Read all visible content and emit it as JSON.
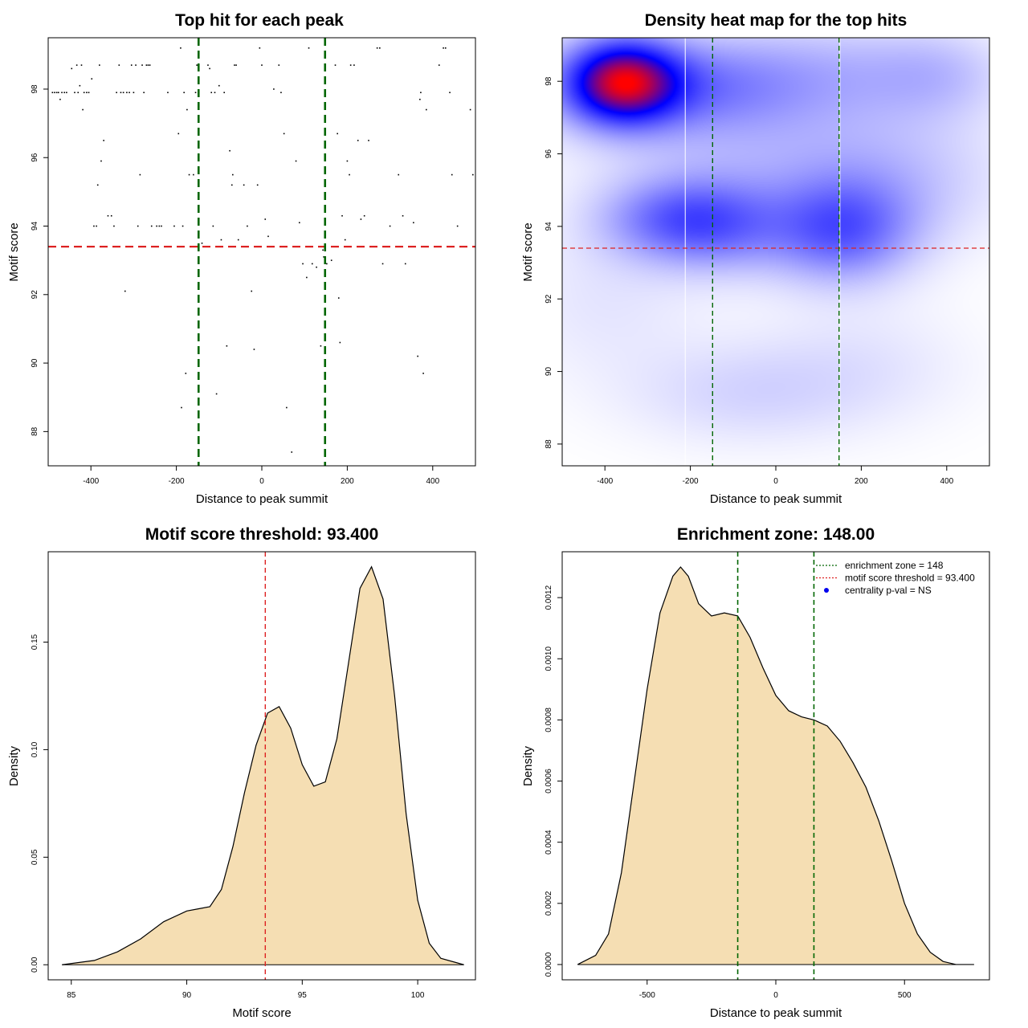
{
  "chart_data": [
    {
      "id": "scatter",
      "type": "scatter",
      "title": "Top hit for each peak",
      "xlabel": "Distance to peak summit",
      "ylabel": "Motif score",
      "xlim": [
        -500,
        500
      ],
      "ylim": [
        87.0,
        99.5
      ],
      "xticks": [
        -400,
        -200,
        0,
        200,
        400
      ],
      "yticks": [
        88,
        90,
        92,
        94,
        96,
        98
      ],
      "threshold_y": 93.4,
      "zone_x": [
        -148,
        148
      ],
      "threshold_color": "#dd2222",
      "zone_color": "#006600",
      "points": [
        [
          -490,
          97.9
        ],
        [
          -485,
          97.9
        ],
        [
          -480,
          97.9
        ],
        [
          -476,
          97.9
        ],
        [
          -472,
          97.7
        ],
        [
          -468,
          97.9
        ],
        [
          -462,
          97.9
        ],
        [
          -457,
          97.9
        ],
        [
          -445,
          98.6
        ],
        [
          -438,
          97.9
        ],
        [
          -433,
          98.7
        ],
        [
          -430,
          97.9
        ],
        [
          -426,
          98.1
        ],
        [
          -422,
          98.7
        ],
        [
          -419,
          97.4
        ],
        [
          -416,
          97.9
        ],
        [
          -410,
          97.9
        ],
        [
          -405,
          97.9
        ],
        [
          -398,
          98.3
        ],
        [
          -393,
          94.0
        ],
        [
          -387,
          94.0
        ],
        [
          -384,
          95.2
        ],
        [
          -380,
          98.7
        ],
        [
          -376,
          95.9
        ],
        [
          -370,
          96.5
        ],
        [
          -360,
          94.3
        ],
        [
          -352,
          94.3
        ],
        [
          -346,
          94.0
        ],
        [
          -340,
          97.9
        ],
        [
          -334,
          98.7
        ],
        [
          -330,
          97.9
        ],
        [
          -324,
          97.9
        ],
        [
          -320,
          92.1
        ],
        [
          -316,
          97.9
        ],
        [
          -310,
          97.9
        ],
        [
          -305,
          98.7
        ],
        [
          -300,
          97.9
        ],
        [
          -295,
          98.7
        ],
        [
          -290,
          94.0
        ],
        [
          -285,
          95.5
        ],
        [
          -280,
          98.7
        ],
        [
          -276,
          97.9
        ],
        [
          -270,
          98.7
        ],
        [
          -266,
          98.7
        ],
        [
          -262,
          98.7
        ],
        [
          -258,
          94.0
        ],
        [
          -246,
          94.0
        ],
        [
          -240,
          94.0
        ],
        [
          -235,
          94.0
        ],
        [
          -220,
          97.9
        ],
        [
          -205,
          94.0
        ],
        [
          -195,
          96.7
        ],
        [
          -190,
          99.2
        ],
        [
          -188,
          88.7
        ],
        [
          -185,
          94.0
        ],
        [
          -182,
          97.9
        ],
        [
          -178,
          89.7
        ],
        [
          -175,
          97.4
        ],
        [
          -170,
          95.5
        ],
        [
          -160,
          95.5
        ],
        [
          -155,
          97.9
        ],
        [
          -152,
          98.7
        ],
        [
          -148,
          98.7
        ],
        [
          -140,
          93.5
        ],
        [
          -126,
          98.7
        ],
        [
          -122,
          98.6
        ],
        [
          -118,
          97.9
        ],
        [
          -114,
          94.0
        ],
        [
          -110,
          97.9
        ],
        [
          -106,
          89.1
        ],
        [
          -100,
          98.1
        ],
        [
          -95,
          93.6
        ],
        [
          -88,
          97.9
        ],
        [
          -82,
          90.5
        ],
        [
          -75,
          96.2
        ],
        [
          -70,
          95.2
        ],
        [
          -68,
          95.5
        ],
        [
          -64,
          98.7
        ],
        [
          -60,
          98.7
        ],
        [
          -55,
          93.6
        ],
        [
          -42,
          95.2
        ],
        [
          -34,
          94.0
        ],
        [
          -24,
          92.1
        ],
        [
          -18,
          90.4
        ],
        [
          -10,
          95.2
        ],
        [
          -5,
          99.2
        ],
        [
          0,
          98.7
        ],
        [
          8,
          94.2
        ],
        [
          15,
          93.7
        ],
        [
          28,
          98.0
        ],
        [
          40,
          98.7
        ],
        [
          45,
          97.9
        ],
        [
          52,
          96.7
        ],
        [
          58,
          88.7
        ],
        [
          70,
          87.4
        ],
        [
          80,
          95.9
        ],
        [
          88,
          94.1
        ],
        [
          96,
          92.9
        ],
        [
          105,
          92.5
        ],
        [
          110,
          99.2
        ],
        [
          118,
          92.9
        ],
        [
          128,
          92.8
        ],
        [
          138,
          90.5
        ],
        [
          143,
          93.3
        ],
        [
          145,
          93.1
        ],
        [
          152,
          92.9
        ],
        [
          163,
          93.0
        ],
        [
          172,
          98.7
        ],
        [
          177,
          96.7
        ],
        [
          180,
          91.9
        ],
        [
          183,
          90.6
        ],
        [
          188,
          94.3
        ],
        [
          195,
          93.6
        ],
        [
          200,
          95.9
        ],
        [
          205,
          95.5
        ],
        [
          208,
          98.7
        ],
        [
          216,
          98.7
        ],
        [
          225,
          96.5
        ],
        [
          232,
          94.2
        ],
        [
          240,
          94.3
        ],
        [
          250,
          96.5
        ],
        [
          270,
          99.2
        ],
        [
          276,
          99.2
        ],
        [
          283,
          92.9
        ],
        [
          300,
          94.0
        ],
        [
          320,
          95.5
        ],
        [
          330,
          94.3
        ],
        [
          336,
          92.9
        ],
        [
          355,
          94.1
        ],
        [
          365,
          90.2
        ],
        [
          370,
          97.7
        ],
        [
          372,
          97.9
        ],
        [
          378,
          89.7
        ],
        [
          385,
          97.4
        ],
        [
          415,
          98.7
        ],
        [
          425,
          99.2
        ],
        [
          430,
          99.2
        ],
        [
          440,
          97.9
        ],
        [
          445,
          95.5
        ],
        [
          458,
          94.0
        ],
        [
          488,
          97.4
        ],
        [
          494,
          95.5
        ]
      ]
    },
    {
      "id": "heatmap",
      "type": "heatmap",
      "title": "Density heat map for the top hits",
      "xlabel": "Distance to peak summit",
      "ylabel": "Motif score",
      "xlim": [
        -500,
        500
      ],
      "ylim": [
        87.4,
        99.2
      ],
      "xticks": [
        -400,
        -200,
        0,
        200,
        400
      ],
      "yticks": [
        88,
        90,
        92,
        94,
        96,
        98
      ],
      "threshold_y": 93.4,
      "zone_x": [
        -148,
        148
      ],
      "colors": [
        "#ffffff",
        "#0000ff",
        "#ff0000"
      ],
      "density_blobs": [
        {
          "x": -360,
          "y": 98.0,
          "sx": 90,
          "sy": 0.8,
          "w": 1.15
        },
        {
          "x": -270,
          "y": 97.9,
          "sx": 200,
          "sy": 0.9,
          "w": 0.45
        },
        {
          "x": -250,
          "y": 94.2,
          "sx": 120,
          "sy": 0.8,
          "w": 0.45
        },
        {
          "x": -120,
          "y": 94.0,
          "sx": 110,
          "sy": 0.9,
          "w": 0.35
        },
        {
          "x": 150,
          "y": 93.9,
          "sx": 120,
          "sy": 1.0,
          "w": 0.6
        },
        {
          "x": 100,
          "y": 98.3,
          "sx": 200,
          "sy": 1.0,
          "w": 0.22
        },
        {
          "x": 380,
          "y": 98.2,
          "sx": 120,
          "sy": 0.9,
          "w": 0.2
        },
        {
          "x": -50,
          "y": 96.2,
          "sx": 250,
          "sy": 1.4,
          "w": 0.2
        },
        {
          "x": 300,
          "y": 95.3,
          "sx": 180,
          "sy": 1.3,
          "w": 0.18
        },
        {
          "x": -80,
          "y": 89.4,
          "sx": 190,
          "sy": 1.0,
          "w": 0.15
        },
        {
          "x": 200,
          "y": 90.2,
          "sx": 180,
          "sy": 1.2,
          "w": 0.1
        },
        {
          "x": -400,
          "y": 92.0,
          "sx": 160,
          "sy": 1.5,
          "w": 0.1
        }
      ]
    },
    {
      "id": "score_density",
      "type": "area",
      "title": "Motif score threshold: 93.400",
      "xlabel": "Motif score",
      "ylabel": "Density",
      "xlim": [
        84,
        102.5
      ],
      "ylim": [
        -0.007,
        0.192
      ],
      "xticks": [
        85,
        90,
        95,
        100
      ],
      "yticks": [
        0.0,
        0.05,
        0.1,
        0.15
      ],
      "ytick_labels": [
        "0.00",
        "0.05",
        "0.10",
        "0.15"
      ],
      "threshold_x": 93.4,
      "fill_color": "#f5deb3",
      "x": [
        84.6,
        86,
        87,
        88,
        89,
        90,
        90.5,
        91,
        91.5,
        92,
        92.5,
        93,
        93.5,
        94,
        94.5,
        95,
        95.5,
        96,
        96.5,
        97,
        97.5,
        98,
        98.5,
        99,
        99.5,
        100,
        100.5,
        101,
        102
      ],
      "y": [
        0.0,
        0.002,
        0.006,
        0.012,
        0.02,
        0.025,
        0.026,
        0.027,
        0.035,
        0.055,
        0.08,
        0.102,
        0.117,
        0.12,
        0.11,
        0.093,
        0.083,
        0.085,
        0.105,
        0.14,
        0.175,
        0.185,
        0.17,
        0.125,
        0.07,
        0.03,
        0.01,
        0.003,
        0.0
      ]
    },
    {
      "id": "distance_density",
      "type": "area",
      "title": "Enrichment zone: 148.00",
      "xlabel": "Distance to peak summit",
      "ylabel": "Density",
      "xlim": [
        -830,
        830
      ],
      "ylim": [
        -5e-05,
        0.00135
      ],
      "xticks": [
        -500,
        0,
        500
      ],
      "yticks": [
        0.0,
        0.0002,
        0.0004,
        0.0006,
        0.0008,
        0.001,
        0.0012
      ],
      "ytick_labels": [
        "0.0000",
        "0.0002",
        "0.0004",
        "0.0006",
        "0.0008",
        "0.0010",
        "0.0012"
      ],
      "zone_x": [
        -148,
        148
      ],
      "fill_color": "#f5deb3",
      "x": [
        -770,
        -700,
        -650,
        -600,
        -550,
        -500,
        -450,
        -400,
        -370,
        -340,
        -300,
        -250,
        -200,
        -148,
        -100,
        -50,
        0,
        50,
        100,
        148,
        200,
        250,
        300,
        350,
        400,
        450,
        500,
        550,
        600,
        650,
        700,
        770
      ],
      "y": [
        0.0,
        3e-05,
        0.0001,
        0.0003,
        0.0006,
        0.0009,
        0.00115,
        0.00127,
        0.0013,
        0.00127,
        0.00118,
        0.00114,
        0.00115,
        0.00114,
        0.00107,
        0.00097,
        0.00088,
        0.00083,
        0.00081,
        0.0008,
        0.00078,
        0.00073,
        0.00066,
        0.00058,
        0.00047,
        0.00034,
        0.0002,
        0.0001,
        4e-05,
        1e-05,
        0.0,
        0.0
      ],
      "legend": [
        {
          "label": "enrichment zone = 148",
          "color": "#006600",
          "kind": "line"
        },
        {
          "label": "motif score threshold = 93.400",
          "color": "#dd2222",
          "kind": "line"
        },
        {
          "label": "centrality p-val = NS",
          "color": "#0000ee",
          "kind": "point"
        }
      ]
    }
  ]
}
